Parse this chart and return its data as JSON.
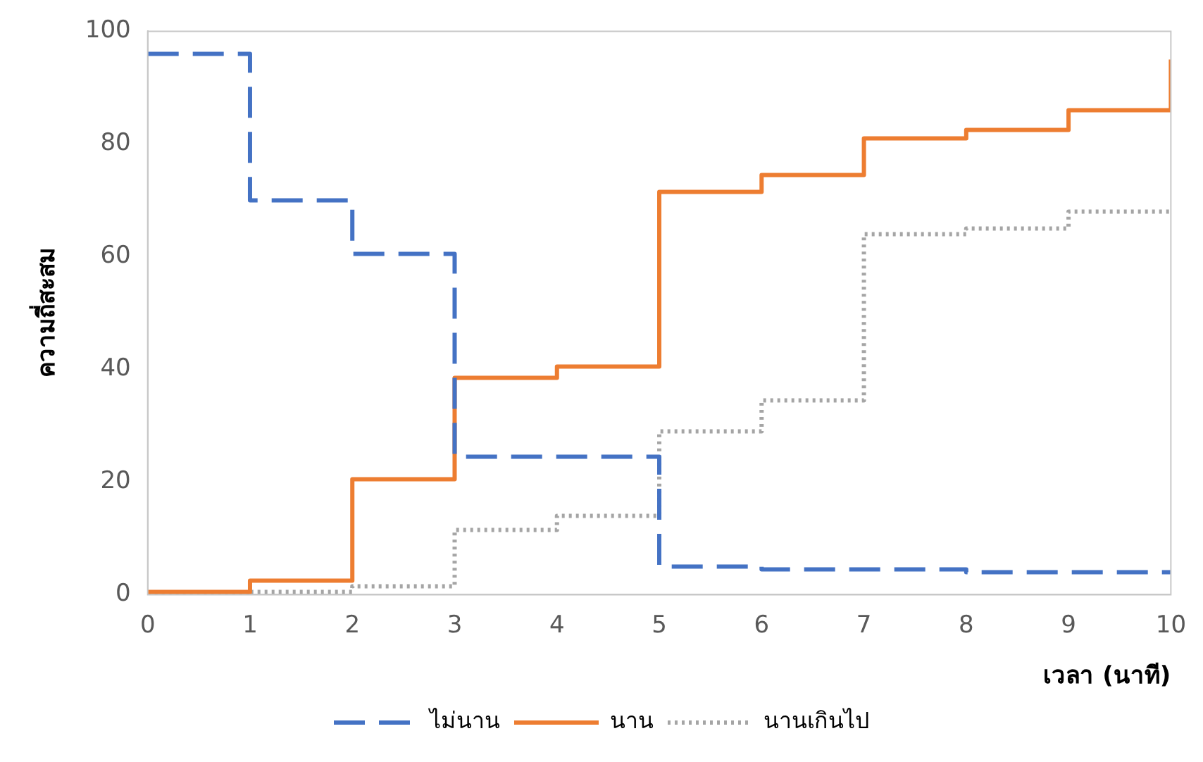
{
  "chart_data": {
    "type": "step",
    "xlabel": "เวลา (นาที)",
    "ylabel": "ความถี่สะสม",
    "x": [
      0,
      1,
      2,
      3,
      4,
      5,
      6,
      7,
      8,
      9,
      10
    ],
    "series": [
      {
        "name": "ไม่นาน",
        "color": "#4472c4",
        "line_style": "dashed",
        "values": [
          96,
          70,
          60.5,
          24.5,
          24.5,
          5,
          4.5,
          4.5,
          4,
          4,
          4
        ]
      },
      {
        "name": "นาน",
        "color": "#ed7d31",
        "line_style": "solid",
        "values": [
          0.5,
          2.5,
          20.5,
          38.5,
          40.5,
          71.5,
          74.5,
          81,
          82.5,
          86,
          95
        ]
      },
      {
        "name": "นานเกินไป",
        "color": "#a5a5a5",
        "line_style": "dotted",
        "values": [
          0,
          0.5,
          1.5,
          11.5,
          14,
          29,
          34.5,
          64,
          65,
          68,
          68
        ]
      }
    ],
    "xlim": [
      0,
      10
    ],
    "xticks": [
      0,
      1,
      2,
      3,
      4,
      5,
      6,
      7,
      8,
      9,
      10
    ],
    "ylim": [
      0,
      100
    ],
    "yticks": [
      0,
      20,
      40,
      60,
      80,
      100
    ],
    "grid": false,
    "legend": "bottom",
    "marker": "none"
  }
}
